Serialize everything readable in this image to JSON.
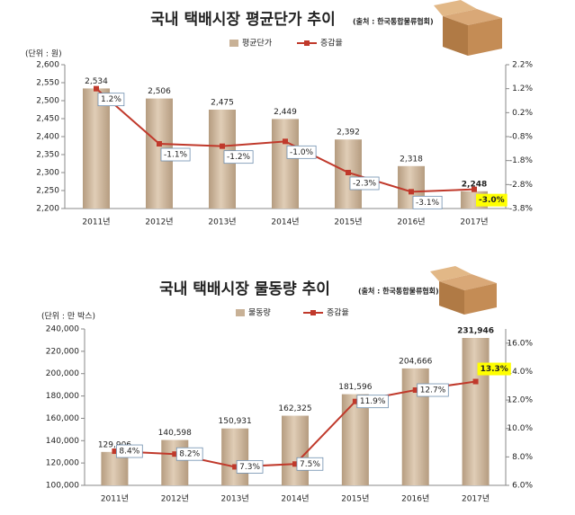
{
  "chart_data": [
    {
      "type": "combo",
      "title": "국내 택배시장 평균단가 추이",
      "source": "(출처 : 한국통합물류협회)",
      "unit_label": "(단위 : 원)",
      "categories": [
        "2011년",
        "2012년",
        "2013년",
        "2014년",
        "2015년",
        "2016년",
        "2017년"
      ],
      "series": [
        {
          "name": "평균단가",
          "color": "#c8b196",
          "values": [
            2534,
            2506,
            2475,
            2449,
            2392,
            2318,
            2248
          ],
          "value_labels": [
            "2,534",
            "2,506",
            "2,475",
            "2,449",
            "2,392",
            "2,318",
            "2,248"
          ]
        },
        {
          "name": "증감율",
          "color": "#c0392b",
          "axis": "y2",
          "values": [
            1.2,
            -1.1,
            -1.2,
            -1.0,
            -2.3,
            -3.1,
            -3.0
          ],
          "value_labels": [
            "1.2%",
            "-1.1%",
            "-1.2%",
            "-1.0%",
            "-2.3%",
            "-3.1%",
            "-3.0%"
          ]
        }
      ],
      "ylim": [
        2200,
        2600
      ],
      "yticks": [
        {
          "value": 2200,
          "label": "2,200"
        },
        {
          "value": 2250,
          "label": "2,250"
        },
        {
          "value": 2300,
          "label": "2,300"
        },
        {
          "value": 2350,
          "label": "2,350"
        },
        {
          "value": 2400,
          "label": "2,400"
        },
        {
          "value": 2450,
          "label": "2,450"
        },
        {
          "value": 2500,
          "label": "2,500"
        },
        {
          "value": 2550,
          "label": "2,550"
        },
        {
          "value": 2600,
          "label": "2,600"
        }
      ],
      "y2lim": [
        -3.8,
        2.2
      ],
      "y2ticks": [
        {
          "value": -3.8,
          "label": "-3.8%"
        },
        {
          "value": -2.8,
          "label": "-2.8%"
        },
        {
          "value": -1.8,
          "label": "-1.8%"
        },
        {
          "value": -0.8,
          "label": "-0.8%"
        },
        {
          "value": 0.2,
          "label": "0.2%"
        },
        {
          "value": 1.2,
          "label": "1.2%"
        },
        {
          "value": 2.2,
          "label": "2.2%"
        }
      ],
      "legend": "top"
    },
    {
      "type": "combo",
      "title": "국내 택배시장 물동량 추이",
      "source": "(출처 : 한국통합물류협회)",
      "unit_label": "(단위 : 만 박스)",
      "categories": [
        "2011년",
        "2012년",
        "2013년",
        "2014년",
        "2015년",
        "2016년",
        "2017년"
      ],
      "series": [
        {
          "name": "물동량",
          "color": "#c8b196",
          "values": [
            129906,
            140598,
            150931,
            162325,
            181596,
            204666,
            231946
          ],
          "value_labels": [
            "129,906",
            "140,598",
            "150,931",
            "162,325",
            "181,596",
            "204,666",
            "231,946"
          ]
        },
        {
          "name": "증감율",
          "color": "#c0392b",
          "axis": "y2",
          "values": [
            8.4,
            8.2,
            7.3,
            7.5,
            11.9,
            12.7,
            13.3
          ],
          "value_labels": [
            "8.4%",
            "8.2%",
            "7.3%",
            "7.5%",
            "11.9%",
            "12.7%",
            "13.3%"
          ]
        }
      ],
      "ylim": [
        100000,
        240000
      ],
      "yticks": [
        {
          "value": 100000,
          "label": "100,000"
        },
        {
          "value": 120000,
          "label": "120,000"
        },
        {
          "value": 140000,
          "label": "140,000"
        },
        {
          "value": 160000,
          "label": "160,000"
        },
        {
          "value": 180000,
          "label": "180,000"
        },
        {
          "value": 200000,
          "label": "200,000"
        },
        {
          "value": 220000,
          "label": "220,000"
        },
        {
          "value": 240000,
          "label": "240,000"
        }
      ],
      "y2lim": [
        6,
        17
      ],
      "y2ticks": [
        {
          "value": 6,
          "label": "6.0%"
        },
        {
          "value": 8,
          "label": "8.0%"
        },
        {
          "value": 10,
          "label": "10.0%"
        },
        {
          "value": 12,
          "label": "12.0%"
        },
        {
          "value": 14,
          "label": "14.0%"
        },
        {
          "value": 16,
          "label": "16.0%"
        }
      ],
      "legend": "top"
    }
  ]
}
